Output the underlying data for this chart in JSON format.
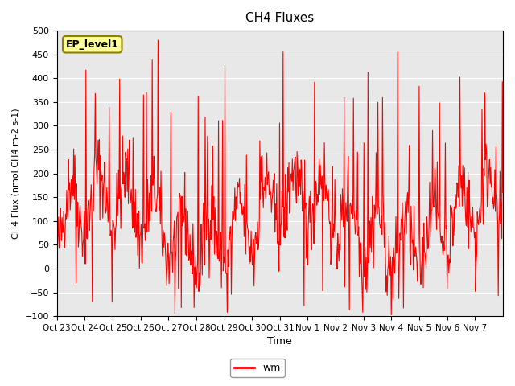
{
  "title": "CH4 Fluxes",
  "xlabel": "Time",
  "ylabel": "CH4 Flux (nmol CH4 m-2 s-1)",
  "ylim": [
    -100,
    500
  ],
  "yticks": [
    -100,
    -50,
    0,
    50,
    100,
    150,
    200,
    250,
    300,
    350,
    400,
    450,
    500
  ],
  "xtick_labels": [
    "Oct 23",
    "Oct 24",
    "Oct 25",
    "Oct 26",
    "Oct 27",
    "Oct 28",
    "Oct 29",
    "Oct 30",
    "Oct 31",
    "Nov 1",
    "Nov 2",
    "Nov 3",
    "Nov 4",
    "Nov 5",
    "Nov 6",
    "Nov 7"
  ],
  "line_color": "red",
  "line_width": 0.8,
  "legend_label": "wm",
  "ep_label": "EP_level1",
  "ep_box_color": "#ffff99",
  "ep_box_edge": "#8B8000",
  "bg_color": "#e8e8e8",
  "grid_color": "white",
  "seed": 42
}
